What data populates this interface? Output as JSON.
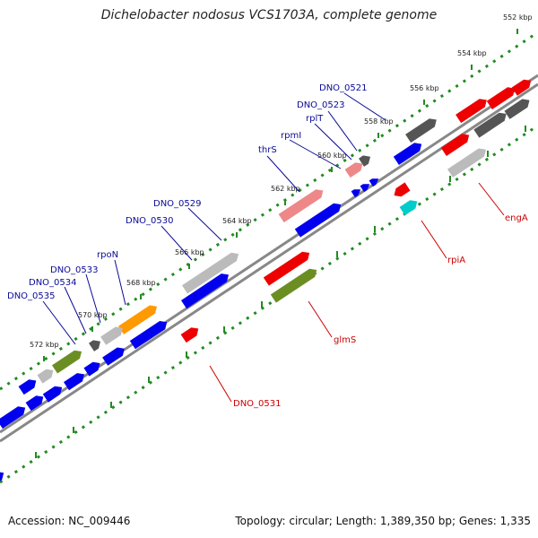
{
  "title": "Dichelobacter nodosus VCS1703A, complete genome",
  "footer": {
    "accession": "Accession: NC_009446",
    "summary": "Topology: circular; Length: 1,389,350 bp; Genes: 1,335"
  },
  "ticks": [
    "552 kbp",
    "554 kbp",
    "556 kbp",
    "558 kbp",
    "560 kbp",
    "562 kbp",
    "564 kbp",
    "566 kbp",
    "568 kbp",
    "570 kbp",
    "572 kbp"
  ],
  "gene_labels_upper": [
    "DNO_0521",
    "DNO_0523",
    "rplT",
    "rpmI",
    "thrS",
    "DNO_0529",
    "DNO_0530",
    "rpoN",
    "DNO_0533",
    "DNO_0534",
    "DNO_0535"
  ],
  "gene_labels_lower": [
    "engA",
    "rpiA",
    "glmS",
    "DNO_0531"
  ],
  "colors": {
    "blue": "#0000ee",
    "red": "#ee0000",
    "gray_dark": "#555555",
    "gray_light": "#bbbbbb",
    "pink": "#ee8888",
    "olive": "#6b8e23",
    "orange": "#ff9900",
    "cyan": "#00cccc",
    "tick_green": "#228b22",
    "label_blue": "#0a0a99",
    "label_red": "#cc0000"
  }
}
